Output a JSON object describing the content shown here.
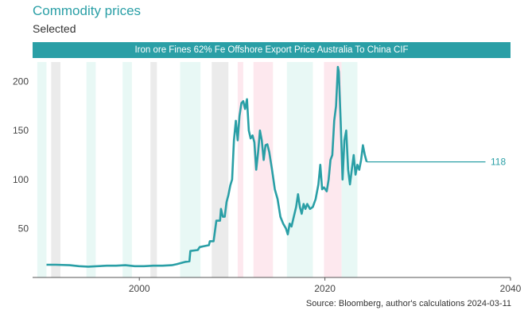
{
  "header": {
    "title": "Commodity prices",
    "subtitle": "Selected"
  },
  "banner": {
    "label": "Iron ore Fines 62% Fe Offshore Export Price Australia To China CIF"
  },
  "footer": {
    "source": "Source: Bloomberg, author's calculations 2024-03-11"
  },
  "colors": {
    "series": "#2a9fa6",
    "expansion_shade": "#e8f8f5",
    "recession_shade": "#fde8ee",
    "neutral_shade": "#ebebeb"
  },
  "chart_data": {
    "type": "line",
    "title": "Iron ore Fines 62% Fe Offshore Export Price Australia To China CIF",
    "xlim": [
      1988.5,
      2040
    ],
    "ylim": [
      0,
      220
    ],
    "x_ticks": [
      2000,
      2020,
      2040
    ],
    "y_ticks": [
      50,
      100,
      150,
      200
    ],
    "grid": false,
    "end_label": "118",
    "series": [
      {
        "values": [
          [
            1990.0,
            13
          ],
          [
            1991.0,
            13
          ],
          [
            1992.5,
            12.5
          ],
          [
            1993.5,
            11.5
          ],
          [
            1994.5,
            11
          ],
          [
            1995.5,
            11.5
          ],
          [
            1996.5,
            12
          ],
          [
            1997.5,
            12
          ],
          [
            1998.5,
            12.5
          ],
          [
            1999.5,
            11.5
          ],
          [
            2000.5,
            11.5
          ],
          [
            2001.5,
            12
          ],
          [
            2002.5,
            12
          ],
          [
            2003.5,
            12.5
          ],
          [
            2004.0,
            13.5
          ],
          [
            2004.6,
            15
          ],
          [
            2005.0,
            16
          ],
          [
            2005.4,
            16.5
          ],
          [
            2005.5,
            27
          ],
          [
            2006.3,
            28
          ],
          [
            2006.5,
            31
          ],
          [
            2007.5,
            33
          ],
          [
            2007.6,
            37
          ],
          [
            2008.0,
            37
          ],
          [
            2008.3,
            58
          ],
          [
            2008.7,
            58
          ],
          [
            2008.8,
            70
          ],
          [
            2009.0,
            62
          ],
          [
            2009.2,
            62
          ],
          [
            2009.4,
            77
          ],
          [
            2009.6,
            84
          ],
          [
            2009.8,
            94
          ],
          [
            2010.0,
            100
          ],
          [
            2010.2,
            140
          ],
          [
            2010.4,
            160
          ],
          [
            2010.6,
            140
          ],
          [
            2010.8,
            165
          ],
          [
            2011.0,
            178
          ],
          [
            2011.2,
            180
          ],
          [
            2011.4,
            172
          ],
          [
            2011.6,
            182
          ],
          [
            2011.8,
            150
          ],
          [
            2012.0,
            142
          ],
          [
            2012.2,
            145
          ],
          [
            2012.4,
            138
          ],
          [
            2012.6,
            110
          ],
          [
            2012.8,
            128
          ],
          [
            2013.0,
            150
          ],
          [
            2013.2,
            140
          ],
          [
            2013.4,
            120
          ],
          [
            2013.6,
            135
          ],
          [
            2013.8,
            136
          ],
          [
            2014.0,
            128
          ],
          [
            2014.3,
            110
          ],
          [
            2014.6,
            90
          ],
          [
            2014.9,
            80
          ],
          [
            2015.2,
            62
          ],
          [
            2015.5,
            55
          ],
          [
            2015.8,
            50
          ],
          [
            2016.0,
            44
          ],
          [
            2016.2,
            55
          ],
          [
            2016.4,
            52
          ],
          [
            2016.6,
            60
          ],
          [
            2016.9,
            72
          ],
          [
            2017.1,
            85
          ],
          [
            2017.3,
            72
          ],
          [
            2017.5,
            65
          ],
          [
            2017.7,
            75
          ],
          [
            2017.9,
            70
          ],
          [
            2018.1,
            75
          ],
          [
            2018.4,
            70
          ],
          [
            2018.7,
            72
          ],
          [
            2019.0,
            80
          ],
          [
            2019.3,
            95
          ],
          [
            2019.5,
            115
          ],
          [
            2019.7,
            90
          ],
          [
            2019.9,
            92
          ],
          [
            2020.2,
            88
          ],
          [
            2020.4,
            100
          ],
          [
            2020.6,
            120
          ],
          [
            2020.8,
            125
          ],
          [
            2021.0,
            160
          ],
          [
            2021.2,
            175
          ],
          [
            2021.4,
            215
          ],
          [
            2021.5,
            210
          ],
          [
            2021.7,
            160
          ],
          [
            2021.9,
            100
          ],
          [
            2022.1,
            140
          ],
          [
            2022.3,
            150
          ],
          [
            2022.5,
            110
          ],
          [
            2022.7,
            95
          ],
          [
            2022.9,
            110
          ],
          [
            2023.1,
            125
          ],
          [
            2023.3,
            105
          ],
          [
            2023.5,
            115
          ],
          [
            2023.7,
            110
          ],
          [
            2023.9,
            120
          ],
          [
            2024.1,
            135
          ],
          [
            2024.3,
            125
          ],
          [
            2024.5,
            118
          ],
          [
            2040.0,
            118
          ]
        ]
      }
    ],
    "shaded_periods": [
      {
        "start": 1989.0,
        "end": 1990.0,
        "kind": "expansion"
      },
      {
        "start": 1990.5,
        "end": 1991.5,
        "kind": "neutral"
      },
      {
        "start": 1994.3,
        "end": 1995.3,
        "kind": "expansion"
      },
      {
        "start": 1998.2,
        "end": 1999.2,
        "kind": "expansion"
      },
      {
        "start": 2001.2,
        "end": 2001.9,
        "kind": "neutral"
      },
      {
        "start": 2004.4,
        "end": 2006.6,
        "kind": "expansion"
      },
      {
        "start": 2007.8,
        "end": 2009.6,
        "kind": "neutral"
      },
      {
        "start": 2010.6,
        "end": 2011.2,
        "kind": "recession"
      },
      {
        "start": 2012.3,
        "end": 2014.4,
        "kind": "recession"
      },
      {
        "start": 2015.9,
        "end": 2018.7,
        "kind": "expansion"
      },
      {
        "start": 2019.9,
        "end": 2021.8,
        "kind": "recession"
      },
      {
        "start": 2021.8,
        "end": 2023.5,
        "kind": "expansion"
      }
    ]
  }
}
